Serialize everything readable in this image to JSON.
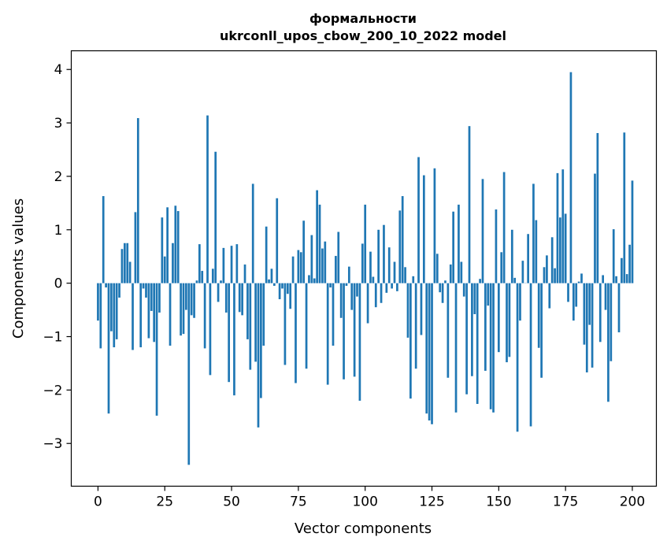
{
  "chart_data": {
    "type": "bar",
    "title": "формальности",
    "subtitle": "ukrconll_upos_cbow_200_10_2022 model",
    "xlabel": "Vector components",
    "ylabel": "Components values",
    "xlim": [
      -10,
      209
    ],
    "ylim": [
      -3.8,
      4.35
    ],
    "xticks": [
      0,
      25,
      50,
      75,
      100,
      125,
      150,
      175,
      200
    ],
    "yticks": [
      -3,
      -2,
      -1,
      0,
      1,
      2,
      3,
      4
    ],
    "xtick_labels": [
      "0",
      "25",
      "50",
      "75",
      "100",
      "125",
      "150",
      "175",
      "200"
    ],
    "ytick_labels": [
      "−3",
      "−2",
      "−1",
      "0",
      "1",
      "2",
      "3",
      "4"
    ],
    "bar_color": "#1f77b4",
    "grid": false,
    "x_start": 0,
    "values": [
      -0.7,
      -1.22,
      1.63,
      -0.08,
      -2.44,
      -0.9,
      -1.2,
      -1.05,
      -0.27,
      0.64,
      0.75,
      0.75,
      0.4,
      -1.25,
      1.33,
      3.09,
      -1.2,
      -0.1,
      -0.27,
      -1.03,
      -0.52,
      -1.1,
      -2.48,
      -0.55,
      1.23,
      0.5,
      1.42,
      -1.17,
      0.75,
      1.45,
      1.35,
      -0.98,
      -0.95,
      -0.5,
      -3.4,
      -0.6,
      -0.65,
      0.05,
      0.73,
      0.23,
      -1.22,
      3.14,
      -1.72,
      0.27,
      2.46,
      -0.35,
      0.05,
      0.66,
      -0.55,
      -1.85,
      0.7,
      -2.1,
      0.73,
      -0.54,
      -0.6,
      0.35,
      -1.05,
      -1.62,
      1.86,
      -1.47,
      -2.7,
      -2.15,
      -1.17,
      1.06,
      0.07,
      0.27,
      -0.05,
      1.59,
      -0.3,
      -0.1,
      -1.53,
      -0.2,
      -0.48,
      0.5,
      -1.87,
      0.62,
      0.58,
      1.17,
      -1.6,
      0.15,
      0.9,
      0.09,
      1.74,
      1.47,
      0.65,
      0.78,
      -1.9,
      -0.08,
      -1.17,
      0.51,
      0.96,
      -0.65,
      -1.8,
      -0.05,
      0.31,
      -0.5,
      -1.75,
      -0.25,
      -2.2,
      0.74,
      1.47,
      -0.75,
      0.59,
      0.12,
      -0.45,
      1.0,
      -0.37,
      1.09,
      -0.18,
      0.67,
      -0.1,
      0.4,
      -0.15,
      1.36,
      1.63,
      0.3,
      -1.02,
      -2.16,
      0.13,
      -1.6,
      2.36,
      -0.97,
      2.02,
      -2.44,
      -2.57,
      -2.64,
      2.15,
      0.55,
      -0.17,
      -0.37,
      0.05,
      -1.77,
      0.35,
      1.34,
      -2.42,
      1.47,
      0.4,
      -0.25,
      -2.08,
      2.94,
      -1.74,
      -0.58,
      -2.26,
      0.08,
      1.95,
      -1.64,
      -0.42,
      -2.36,
      -2.42,
      1.38,
      -1.29,
      0.58,
      2.08,
      -1.48,
      -1.38,
      1.0,
      0.1,
      -2.78,
      -0.7,
      0.42,
      0.0,
      0.92,
      -2.68,
      1.86,
      1.18,
      -1.21,
      -1.77,
      0.3,
      0.52,
      -0.47,
      0.86,
      0.28,
      2.06,
      1.23,
      2.13,
      1.3,
      -0.35,
      3.95,
      -0.7,
      -0.44,
      0.03,
      0.18,
      -1.15,
      -1.67,
      -0.78,
      -1.58,
      2.05,
      2.81,
      -1.1,
      0.15,
      -0.5,
      -2.22,
      -1.46,
      1.01,
      0.13,
      -0.92,
      0.47,
      2.82,
      0.17,
      0.72,
      1.92
    ]
  }
}
